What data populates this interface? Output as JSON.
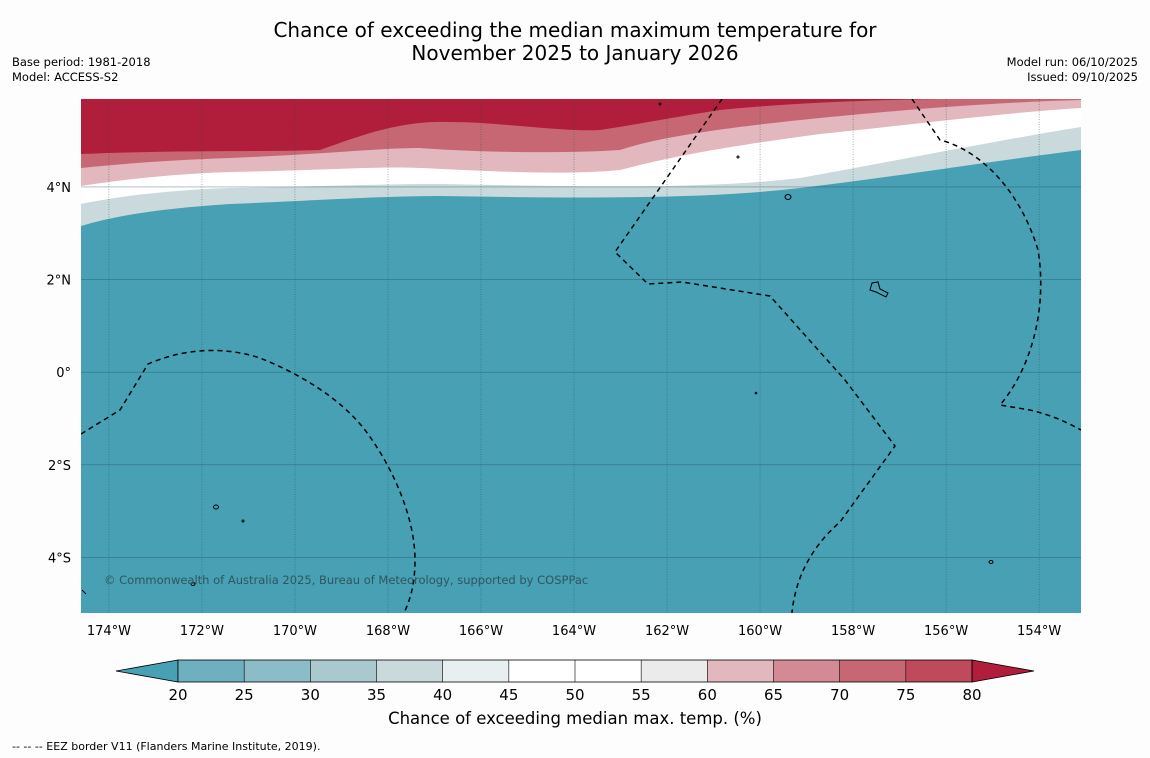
{
  "title": {
    "line1": "Chance of exceeding the median maximum temperature for",
    "line2": "November 2025 to January 2026"
  },
  "meta_left": [
    {
      "label": "Base period",
      "value": "1981-2018"
    },
    {
      "label": "Model",
      "value": "ACCESS-S2"
    }
  ],
  "meta_right": [
    {
      "label": "Model run",
      "value": "06/10/2025"
    },
    {
      "label": "Issued",
      "value": "09/10/2025"
    }
  ],
  "map": {
    "lat_ticks": [
      "4°N",
      "2°N",
      "0°",
      "2°S",
      "4°S"
    ],
    "lon_ticks": [
      "174°W",
      "172°W",
      "170°W",
      "168°W",
      "166°W",
      "164°W",
      "162°W",
      "160°W",
      "158°W",
      "156°W",
      "154°W"
    ],
    "lat_values": [
      4,
      2,
      0,
      -2,
      -4
    ],
    "lon_values": [
      -174,
      -172,
      -170,
      -168,
      -166,
      -164,
      -162,
      -160,
      -158,
      -156,
      -154
    ],
    "lon_range": [
      -174.6,
      -153.1
    ],
    "lat_range": [
      -5.2,
      5.9
    ],
    "credit": "© Commonwealth of Australia 2025, Bureau of Meteorology, supported by COSPPac",
    "base_color": "#47a0b3",
    "hot_color": "#b01e3c"
  },
  "colorbar": {
    "label": "Chance of exceeding median max. temp. (%)",
    "ticks": [
      "20",
      "25",
      "30",
      "35",
      "40",
      "45",
      "50",
      "55",
      "60",
      "65",
      "70",
      "75",
      "80"
    ],
    "colors": [
      "#47a0b3",
      "#6eb0bf",
      "#8cbcc7",
      "#aac9cf",
      "#c9d9dc",
      "#e8eff0",
      "#ffffff",
      "#ffffff",
      "#ecebeb",
      "#e2b7bd",
      "#d48a95",
      "#c86774",
      "#bf4a5b",
      "#b01e3c"
    ]
  },
  "footnote": "--  --  -- EEZ border V11 (Flanders Marine Institute, 2019)."
}
